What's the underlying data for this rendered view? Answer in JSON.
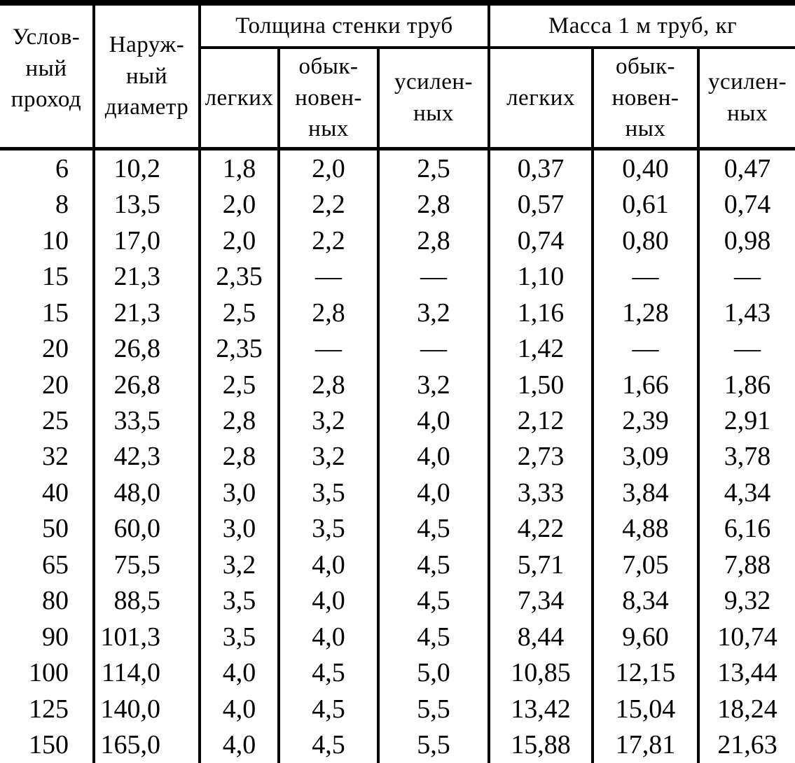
{
  "table": {
    "title": "pipe-dimensions-and-mass-table",
    "columns": {
      "nominal_bore": "Услов-\nный\nпроход",
      "outer_diameter": "Наруж-\nный\nдиаметр",
      "group_wall_thickness": "Толщина стенки труб",
      "group_mass": "Масса 1 м труб, кг",
      "sub": {
        "light": "легких",
        "ordinary": "обык-\nновен-\nных",
        "reinforced": "усилен-\nных"
      }
    },
    "rows": [
      [
        "6",
        "10,2",
        "1,8",
        "2,0",
        "2,5",
        "0,37",
        "0,40",
        "0,47"
      ],
      [
        "8",
        "13,5",
        "2,0",
        "2,2",
        "2,8",
        "0,57",
        "0,61",
        "0,74"
      ],
      [
        "10",
        "17,0",
        "2,0",
        "2,2",
        "2,8",
        "0,74",
        "0,80",
        "0,98"
      ],
      [
        "15",
        "21,3",
        "2,35",
        "—",
        "—",
        "1,10",
        "—",
        "—"
      ],
      [
        "15",
        "21,3",
        "2,5",
        "2,8",
        "3,2",
        "1,16",
        "1,28",
        "1,43"
      ],
      [
        "20",
        "26,8",
        "2,35",
        "—",
        "—",
        "1,42",
        "—",
        "—"
      ],
      [
        "20",
        "26,8",
        "2,5",
        "2,8",
        "3,2",
        "1,50",
        "1,66",
        "1,86"
      ],
      [
        "25",
        "33,5",
        "2,8",
        "3,2",
        "4,0",
        "2,12",
        "2,39",
        "2,91"
      ],
      [
        "32",
        "42,3",
        "2,8",
        "3,2",
        "4,0",
        "2,73",
        "3,09",
        "3,78"
      ],
      [
        "40",
        "48,0",
        "3,0",
        "3,5",
        "4,0",
        "3,33",
        "3,84",
        "4,34"
      ],
      [
        "50",
        "60,0",
        "3,0",
        "3,5",
        "4,5",
        "4,22",
        "4,88",
        "6,16"
      ],
      [
        "65",
        "75,5",
        "3,2",
        "4,0",
        "4,5",
        "5,71",
        "7,05",
        "7,88"
      ],
      [
        "80",
        "88,5",
        "3,5",
        "4,0",
        "4,5",
        "7,34",
        "8,34",
        "9,32"
      ],
      [
        "90",
        "101,3",
        "3,5",
        "4,0",
        "4,5",
        "8,44",
        "9,60",
        "10,74"
      ],
      [
        "100",
        "114,0",
        "4,0",
        "4,5",
        "5,0",
        "10,85",
        "12,15",
        "13,44"
      ],
      [
        "125",
        "140,0",
        "4,0",
        "4,5",
        "5,5",
        "13,42",
        "15,04",
        "18,24"
      ],
      [
        "150",
        "165,0",
        "4,0",
        "4,5",
        "5,5",
        "15,88",
        "17,81",
        "21,63"
      ]
    ],
    "colors": {
      "line": "#000000",
      "background": "#ffffff",
      "text": "#000000"
    }
  }
}
